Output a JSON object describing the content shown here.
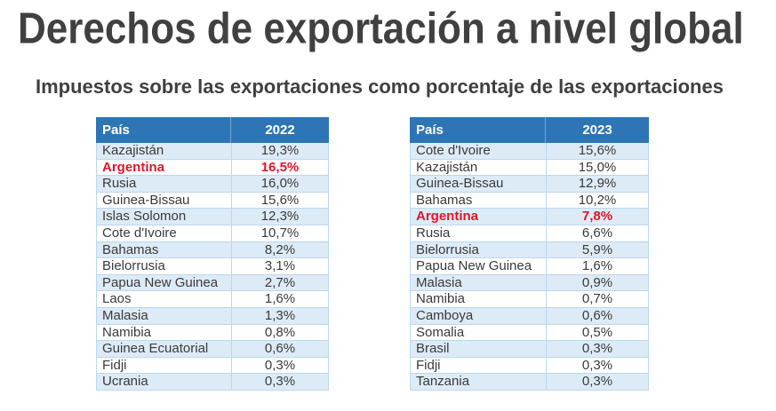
{
  "slide": {
    "title": "Derechos de exportación a nivel global",
    "subtitle": "Impuestos sobre las exportaciones como porcentaje de las exportaciones"
  },
  "colors": {
    "title": "#404040",
    "header_bg": "#2E75B6",
    "header_text": "#FFFFFF",
    "band": "#DDEBF7",
    "grid": "#BDD7EE",
    "cell_text": "#3A3A3A",
    "highlight": "#E2152A"
  },
  "chart_data": [
    {
      "type": "table",
      "columns": [
        "País",
        "2022"
      ],
      "rows": [
        {
          "country": "Kazajistán",
          "value": "19,3%"
        },
        {
          "country": "Argentina",
          "value": "16,5%",
          "highlight": true
        },
        {
          "country": "Rusia",
          "value": "16,0%"
        },
        {
          "country": "Guinea-Bissau",
          "value": "15,6%"
        },
        {
          "country": "Islas Solomon",
          "value": "12,3%"
        },
        {
          "country": "Cote d'Ivoire",
          "value": "10,7%"
        },
        {
          "country": "Bahamas",
          "value": "8,2%"
        },
        {
          "country": "Bielorrusia",
          "value": "3,1%"
        },
        {
          "country": "Papua New Guinea",
          "value": "2,7%"
        },
        {
          "country": "Laos",
          "value": "1,6%"
        },
        {
          "country": "Malasia",
          "value": "1,3%"
        },
        {
          "country": "Namibia",
          "value": "0,8%"
        },
        {
          "country": "Guinea Ecuatorial",
          "value": "0,6%"
        },
        {
          "country": "Fidji",
          "value": "0,3%"
        },
        {
          "country": "Ucrania",
          "value": "0,3%"
        }
      ]
    },
    {
      "type": "table",
      "columns": [
        "País",
        "2023"
      ],
      "rows": [
        {
          "country": "Cote d'Ivoire",
          "value": "15,6%"
        },
        {
          "country": "Kazajistán",
          "value": "15,0%"
        },
        {
          "country": "Guinea-Bissau",
          "value": "12,9%"
        },
        {
          "country": "Bahamas",
          "value": "10,2%"
        },
        {
          "country": "Argentina",
          "value": "7,8%",
          "highlight": true
        },
        {
          "country": "Rusia",
          "value": "6,6%"
        },
        {
          "country": "Bielorrusia",
          "value": "5,9%"
        },
        {
          "country": "Papua New Guinea",
          "value": "1,6%"
        },
        {
          "country": "Malasia",
          "value": "0,9%"
        },
        {
          "country": "Namibia",
          "value": "0,7%"
        },
        {
          "country": "Camboya",
          "value": "0,6%"
        },
        {
          "country": "Somalia",
          "value": "0,5%"
        },
        {
          "country": "Brasil",
          "value": "0,3%"
        },
        {
          "country": "Fidji",
          "value": "0,3%"
        },
        {
          "country": "Tanzania",
          "value": "0,3%"
        }
      ]
    }
  ]
}
